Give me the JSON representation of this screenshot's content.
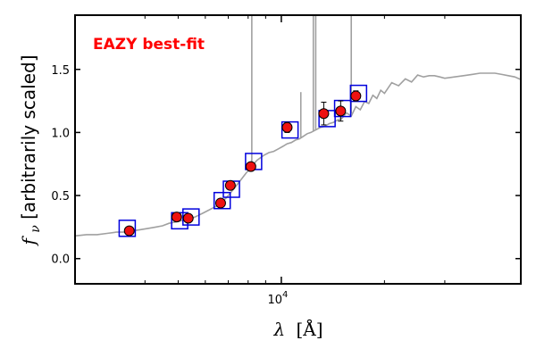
{
  "chart_data": {
    "type": "scatter",
    "title": "",
    "annotation": "EAZY best-fit",
    "annotation_color": "#ff0000",
    "xlabel_symbol": "λ",
    "xlabel_unit": "[Å]",
    "ylabel_symbol": "f",
    "ylabel_subscript": "ν",
    "ylabel_text": " [arbitrarily scaled]",
    "x_scale": "log",
    "xlim": [
      2500,
      50000
    ],
    "ylim": [
      -0.2,
      1.93
    ],
    "x_ticks": [
      {
        "value": 10000,
        "base": "10",
        "exp": "4"
      }
    ],
    "x_minor_ticks": [
      4000,
      5000,
      6000,
      7000,
      8000,
      9000,
      20000,
      30000
    ],
    "y_ticks": [
      {
        "value": 0.0,
        "label": "0.0"
      },
      {
        "value": 0.5,
        "label": "0.5"
      },
      {
        "value": 1.0,
        "label": "1.0"
      },
      {
        "value": 1.5,
        "label": "1.5"
      }
    ],
    "grid": false,
    "colors": {
      "template": "#a0a0a0",
      "model_box": "#0000dd",
      "observed": "#ee1111",
      "observed_edge": "#000000",
      "errorbar": "#000000"
    },
    "template": {
      "name": "",
      "x": [
        2500,
        2700,
        2900,
        3100,
        3300,
        3500,
        3700,
        3900,
        4100,
        4300,
        4500,
        4700,
        4900,
        5100,
        5300,
        5500,
        5700,
        5900,
        6100,
        6300,
        6500,
        6700,
        6900,
        7100,
        7300,
        7500,
        7700,
        7900,
        8100,
        8300,
        8500,
        8700,
        8900,
        9200,
        9500,
        9800,
        10100,
        10400,
        10700,
        11000,
        11300,
        11600,
        11900,
        12200,
        12600,
        13000,
        13400,
        13800,
        14200,
        14600,
        15000,
        15500,
        16000,
        16500,
        17000,
        17500,
        18000,
        18500,
        19000,
        19500,
        20000,
        21000,
        22000,
        23000,
        24000,
        25000,
        26000,
        27000,
        28000,
        29000,
        30000,
        32000,
        34000,
        36000,
        38000,
        40000,
        42000,
        44000,
        46000,
        48000,
        50000
      ],
      "y": [
        0.18,
        0.19,
        0.19,
        0.2,
        0.21,
        0.21,
        0.22,
        0.23,
        0.24,
        0.25,
        0.26,
        0.28,
        0.29,
        0.3,
        0.31,
        0.32,
        0.34,
        0.36,
        0.38,
        0.4,
        0.42,
        0.45,
        0.48,
        0.52,
        0.56,
        0.6,
        0.64,
        0.68,
        0.71,
        0.75,
        0.78,
        0.8,
        0.82,
        0.84,
        0.85,
        0.87,
        0.89,
        0.91,
        0.92,
        0.94,
        0.95,
        0.97,
        0.99,
        1.0,
        1.02,
        1.04,
        1.05,
        1.07,
        1.08,
        1.1,
        1.11,
        1.13,
        1.15,
        1.18,
        1.2,
        1.22,
        1.25,
        1.27,
        1.29,
        1.31,
        1.33,
        1.37,
        1.39,
        1.4,
        1.42,
        1.43,
        1.44,
        1.45,
        1.45,
        1.44,
        1.43,
        1.44,
        1.45,
        1.46,
        1.47,
        1.47,
        1.47,
        1.46,
        1.45,
        1.44,
        1.42
      ]
    },
    "emission_lines": [
      {
        "x": 8200,
        "peak": 1.93
      },
      {
        "x": 11400,
        "peak": 1.32
      },
      {
        "x": 12400,
        "peak": 1.93
      },
      {
        "x": 12600,
        "peak": 1.93
      },
      {
        "x": 16000,
        "peak": 1.93
      }
    ],
    "model_photometry": {
      "name": "",
      "x": [
        3550,
        5050,
        5450,
        6720,
        7150,
        8300,
        10600,
        13600,
        15100,
        16800
      ],
      "y": [
        0.24,
        0.3,
        0.33,
        0.46,
        0.55,
        0.77,
        1.02,
        1.11,
        1.19,
        1.31
      ]
    },
    "observed_photometry": {
      "name": "",
      "x": [
        3600,
        4950,
        5350,
        6650,
        7100,
        8150,
        10400,
        13300,
        14900,
        16500
      ],
      "y": [
        0.22,
        0.33,
        0.32,
        0.44,
        0.58,
        0.73,
        1.04,
        1.15,
        1.17,
        1.29
      ],
      "yerr": [
        0.01,
        0.01,
        0.01,
        0.01,
        0.01,
        0.02,
        0.04,
        0.09,
        0.08,
        0.04
      ]
    }
  }
}
